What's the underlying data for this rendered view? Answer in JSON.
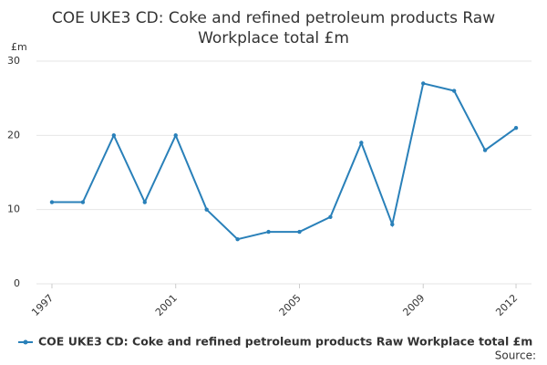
{
  "chart_data": {
    "type": "line",
    "title": "COE UKE3 CD: Coke and refined petroleum products Raw Workplace total £m",
    "y_label": "£m",
    "x": [
      1997,
      1998,
      1999,
      2000,
      2001,
      2002,
      2003,
      2004,
      2005,
      2006,
      2007,
      2008,
      2009,
      2010,
      2011,
      2012
    ],
    "series": [
      {
        "name": "COE UKE3 CD: Coke and refined petroleum products Raw Workplace total £m",
        "color": "#2980b9",
        "values": [
          11,
          11,
          20,
          11,
          20,
          10,
          6,
          7,
          7,
          9,
          19,
          8,
          27,
          26,
          18,
          21
        ]
      }
    ],
    "xlim": [
      1996.5,
      2012.5
    ],
    "xticks": [
      1997,
      2001,
      2005,
      2009,
      2012
    ],
    "ylim": [
      0,
      30
    ],
    "yticks": [
      0,
      10,
      20,
      30
    ],
    "grid": true,
    "source_label": "Source:"
  }
}
